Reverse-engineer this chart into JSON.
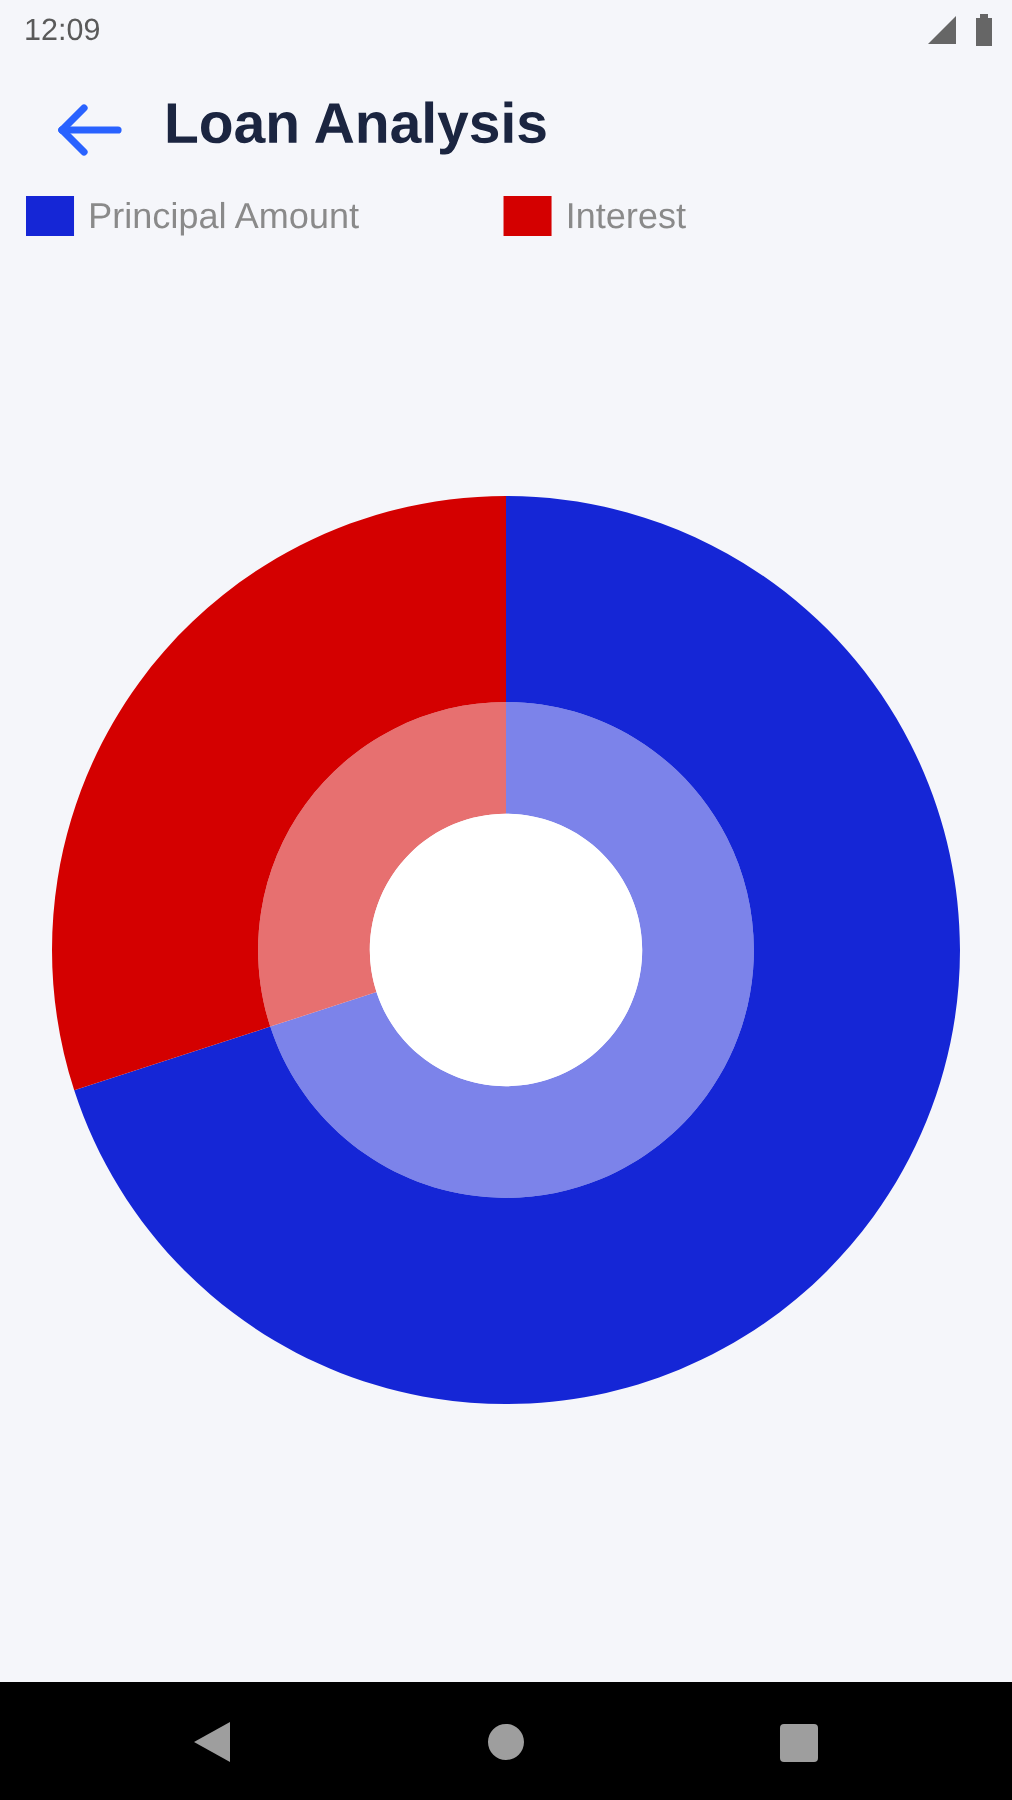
{
  "chart_data": {
    "type": "donut",
    "title": "Loan Analysis",
    "categories": [
      "Principal Amount",
      "Interest"
    ],
    "series": [
      {
        "values": [
          70,
          30
        ],
        "colors": [
          "#7c83ea",
          "#e77070"
        ]
      },
      {
        "values": [
          70,
          30
        ],
        "colors": [
          "#1526d6",
          "#d40000"
        ]
      }
    ],
    "legend": "top",
    "annotations": [
      "12:09"
    ]
  }
}
